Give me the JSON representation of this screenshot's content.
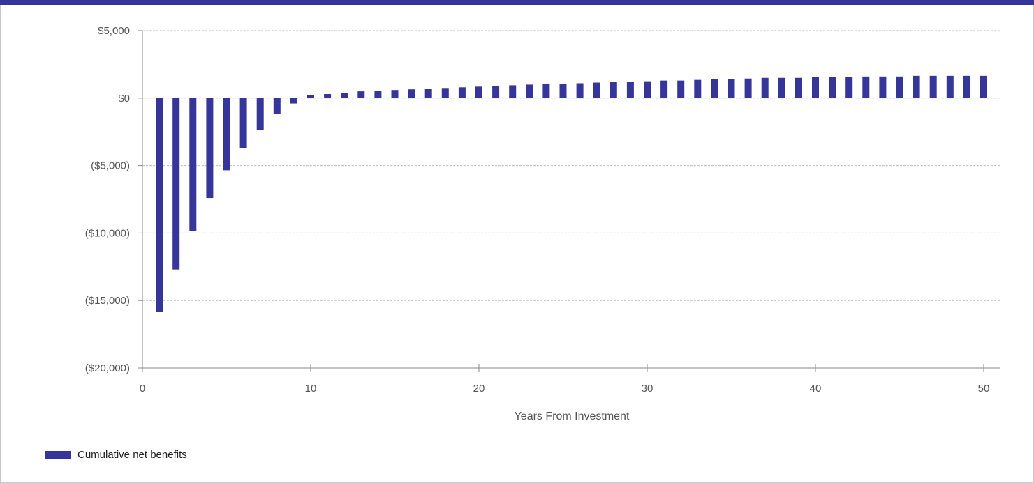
{
  "colors": {
    "bar": "#35359a",
    "header": "#35359a",
    "grid": "#bdbdbd",
    "axis": "#888888"
  },
  "chart_data": {
    "type": "bar",
    "xlabel": "Years From Investment",
    "ylabel": "",
    "xlim": [
      0,
      51
    ],
    "ylim": [
      -20000,
      5000
    ],
    "y_ticks": [
      5000,
      0,
      -5000,
      -10000,
      -15000,
      -20000
    ],
    "y_tick_labels": [
      "$5,000",
      "$0",
      "($5,000)",
      "($10,000)",
      "($15,000)",
      "($20,000)"
    ],
    "x_ticks": [
      0,
      10,
      20,
      30,
      40,
      50
    ],
    "x_tick_labels": [
      "0",
      "10",
      "20",
      "30",
      "40",
      "50"
    ],
    "grid": "horizontal dashed",
    "legend_position": "bottom-left",
    "series": [
      {
        "name": "Cumulative net benefits",
        "x": [
          1,
          2,
          3,
          4,
          5,
          6,
          7,
          8,
          9,
          10,
          11,
          12,
          13,
          14,
          15,
          16,
          17,
          18,
          19,
          20,
          21,
          22,
          23,
          24,
          25,
          26,
          27,
          28,
          29,
          30,
          31,
          32,
          33,
          34,
          35,
          36,
          37,
          38,
          39,
          40,
          41,
          42,
          43,
          44,
          45,
          46,
          47,
          48,
          49,
          50
        ],
        "values": [
          -15850,
          -12700,
          -9850,
          -7400,
          -5350,
          -3700,
          -2350,
          -1150,
          -400,
          200,
          300,
          400,
          500,
          550,
          600,
          650,
          700,
          750,
          800,
          850,
          900,
          950,
          1000,
          1050,
          1050,
          1100,
          1150,
          1200,
          1200,
          1250,
          1300,
          1300,
          1350,
          1400,
          1400,
          1450,
          1500,
          1500,
          1500,
          1550,
          1550,
          1550,
          1600,
          1600,
          1600,
          1650,
          1650,
          1650,
          1650,
          1650
        ]
      }
    ]
  }
}
